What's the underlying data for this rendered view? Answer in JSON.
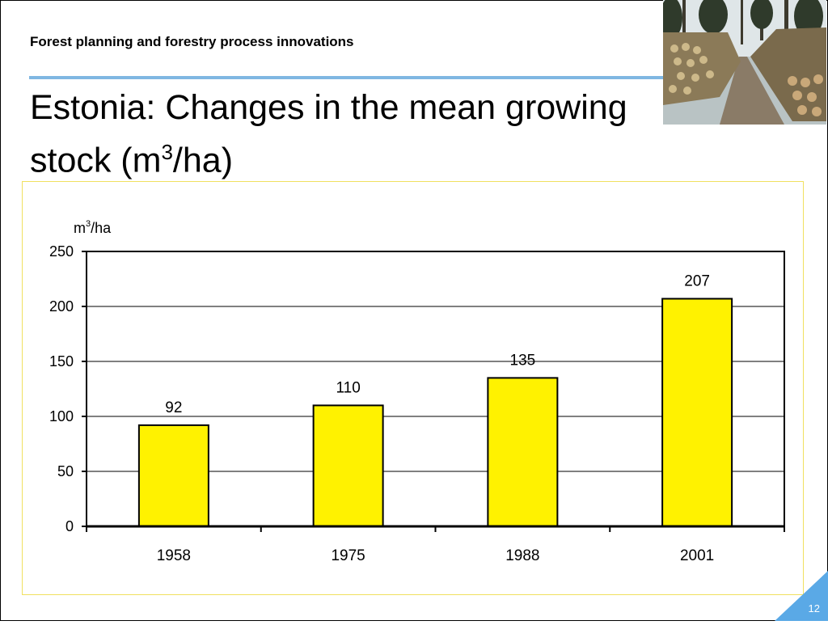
{
  "header": {
    "label": "Forest planning and forestry process innovations",
    "title_main": "Estonia: Changes in the mean growing stock (m",
    "title_sup": "3",
    "title_end": "/ha)"
  },
  "photo": {
    "icon": "forest-log-piles-photo"
  },
  "colors": {
    "bar_fill": "#fff200",
    "bar_stroke": "#000000",
    "rule": "#7fb7e2",
    "corner": "#5aa9e6",
    "frame": "#f0e060"
  },
  "chart_data": {
    "type": "bar",
    "ylabel_main": "m",
    "ylabel_sup": "3",
    "ylabel_end": "/ha",
    "categories": [
      "1958",
      "1975",
      "1988",
      "2001"
    ],
    "values": [
      92,
      110,
      135,
      207
    ],
    "data_labels": [
      "92",
      "110",
      "135",
      "207"
    ],
    "ylim": [
      0,
      250
    ],
    "yticks": [
      "0",
      "50",
      "100",
      "150",
      "200",
      "250"
    ],
    "grid": true,
    "legend": "none"
  },
  "footer": {
    "page_number": "12"
  }
}
